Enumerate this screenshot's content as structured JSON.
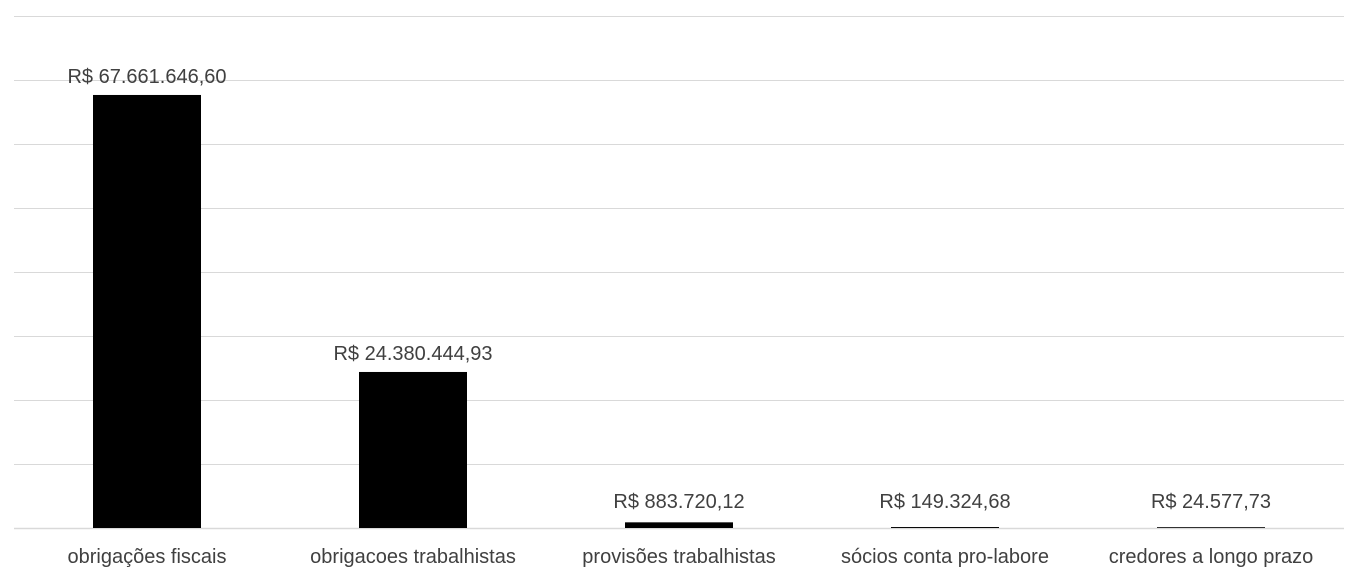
{
  "chart_data": {
    "type": "bar",
    "categories": [
      "obrigações fiscais",
      "obrigacoes trabalhistas",
      "provisões trabalhistas",
      "sócios conta pro-labore",
      "credores a longo prazo"
    ],
    "values": [
      67661646.6,
      24380444.93,
      883720.12,
      149324.68,
      24577.73
    ],
    "data_labels": [
      "R$ 67.661.646,60",
      "R$ 24.380.444,93",
      "R$ 883.720,12",
      "R$ 149.324,68",
      "R$ 24.577,73"
    ],
    "ylim": [
      0,
      80000000
    ],
    "y_gridline_count": 8,
    "grid": true,
    "legend": "none",
    "bar_color": "#000000",
    "gridline_color": "#d9d9d9",
    "text_color": "#404040"
  }
}
